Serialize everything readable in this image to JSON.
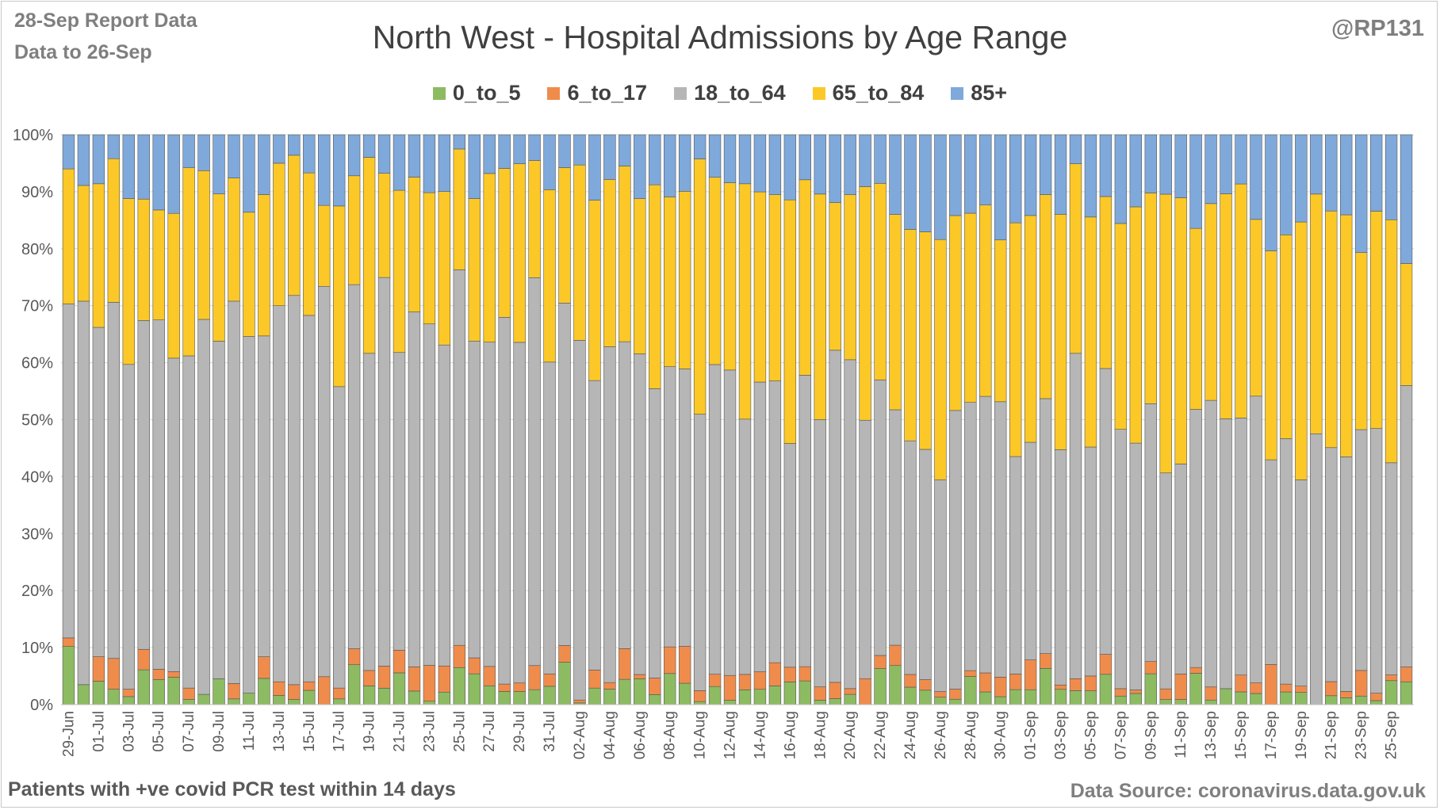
{
  "header": {
    "report_line1": "28-Sep Report Data",
    "report_line2": "Data to 26-Sep",
    "handle": "@RP131"
  },
  "footer": {
    "left_note": "Patients with  +ve covid PCR test within 14 days",
    "source": "Data Source: coronavirus.data.gov.uk"
  },
  "colors": {
    "0_to_5": "#8dbb62",
    "6_to_17": "#ef8c4c",
    "18_to_64": "#b6b6b6",
    "65_to_84": "#fbc828",
    "85+": "#7fa9db",
    "bar_border": "#555555",
    "grid": "#d9d9d9"
  },
  "chart_data": {
    "type": "bar",
    "stacked": true,
    "normalized": true,
    "title": "North West - Hospital Admissions by Age Range",
    "legend_position": "top",
    "grid": true,
    "ylim": [
      0,
      100
    ],
    "y_ticks": [
      "0%",
      "10%",
      "20%",
      "30%",
      "40%",
      "50%",
      "60%",
      "70%",
      "80%",
      "90%",
      "100%"
    ],
    "categories": [
      "29-Jun",
      "30-Jun",
      "01-Jul",
      "02-Jul",
      "03-Jul",
      "04-Jul",
      "05-Jul",
      "06-Jul",
      "07-Jul",
      "08-Jul",
      "09-Jul",
      "10-Jul",
      "11-Jul",
      "12-Jul",
      "13-Jul",
      "14-Jul",
      "15-Jul",
      "16-Jul",
      "17-Jul",
      "18-Jul",
      "19-Jul",
      "20-Jul",
      "21-Jul",
      "22-Jul",
      "23-Jul",
      "24-Jul",
      "25-Jul",
      "26-Jul",
      "27-Jul",
      "28-Jul",
      "29-Jul",
      "30-Jul",
      "31-Jul",
      "01-Aug",
      "02-Aug",
      "03-Aug",
      "04-Aug",
      "05-Aug",
      "06-Aug",
      "07-Aug",
      "08-Aug",
      "09-Aug",
      "10-Aug",
      "11-Aug",
      "12-Aug",
      "13-Aug",
      "14-Aug",
      "15-Aug",
      "16-Aug",
      "17-Aug",
      "18-Aug",
      "19-Aug",
      "20-Aug",
      "21-Aug",
      "22-Aug",
      "23-Aug",
      "24-Aug",
      "25-Aug",
      "26-Aug",
      "27-Aug",
      "28-Aug",
      "29-Aug",
      "30-Aug",
      "31-Aug",
      "01-Sep",
      "02-Sep",
      "03-Sep",
      "04-Sep",
      "05-Sep",
      "06-Sep",
      "07-Sep",
      "08-Sep",
      "09-Sep",
      "10-Sep",
      "11-Sep",
      "12-Sep",
      "13-Sep",
      "14-Sep",
      "15-Sep",
      "16-Sep",
      "17-Sep",
      "18-Sep",
      "19-Sep",
      "20-Sep",
      "21-Sep",
      "22-Sep",
      "23-Sep",
      "24-Sep",
      "25-Sep",
      "26-Sep"
    ],
    "x_tick_labels": [
      "29-Jun",
      "01-Jul",
      "03-Jul",
      "05-Jul",
      "07-Jul",
      "09-Jul",
      "11-Jul",
      "13-Jul",
      "15-Jul",
      "17-Jul",
      "19-Jul",
      "21-Jul",
      "23-Jul",
      "25-Jul",
      "27-Jul",
      "29-Jul",
      "31-Jul",
      "02-Aug",
      "04-Aug",
      "06-Aug",
      "08-Aug",
      "10-Aug",
      "12-Aug",
      "14-Aug",
      "16-Aug",
      "18-Aug",
      "20-Aug",
      "22-Aug",
      "24-Aug",
      "26-Aug",
      "28-Aug",
      "30-Aug",
      "01-Sep",
      "03-Sep",
      "05-Sep",
      "07-Sep",
      "09-Sep",
      "11-Sep",
      "13-Sep",
      "15-Sep",
      "17-Sep",
      "19-Sep",
      "21-Sep",
      "23-Sep",
      "25-Sep"
    ],
    "series": [
      {
        "name": "0_to_5",
        "values": [
          10.2,
          3.5,
          4.1,
          2.7,
          1.4,
          6.1,
          4.4,
          4.8,
          0.9,
          1.8,
          4.4,
          1.0,
          2.0,
          4.6,
          1.6,
          0.9,
          2.5,
          0.0,
          1.0,
          7.0,
          3.4,
          2.9,
          5.6,
          2.3,
          0.6,
          2.2,
          6.5,
          5.4,
          3.3,
          2.3,
          2.3,
          2.6,
          3.4,
          7.1,
          0.3,
          3.1,
          2.6,
          4.6,
          4.8,
          1.7,
          5.6,
          3.7,
          0.5,
          3.1,
          0.8,
          2.6,
          2.7,
          3.3,
          4.0,
          4.0,
          0.8,
          1.1,
          1.8,
          0.0,
          6.3,
          7.3,
          3.3,
          2.6,
          1.3,
          0.9,
          4.8,
          2.2,
          1.5,
          2.5,
          2.6,
          6.1,
          2.8,
          2.2,
          2.7,
          5.0,
          1.5,
          1.9,
          5.3,
          0.9,
          0.9,
          5.5,
          0.8,
          2.8,
          2.2,
          2.1,
          0.0,
          2.1,
          2.1,
          0.0,
          1.7,
          1.2,
          1.5,
          0.7,
          4.2,
          4.0
        ]
      },
      {
        "name": "6_to_17",
        "values": [
          1.5,
          0.0,
          4.3,
          5.4,
          1.3,
          3.6,
          1.8,
          1.0,
          2.0,
          0.0,
          0.0,
          2.7,
          0.0,
          3.8,
          2.4,
          2.6,
          1.5,
          4.9,
          1.9,
          2.8,
          2.8,
          3.9,
          4.0,
          4.1,
          6.3,
          4.6,
          3.9,
          2.8,
          3.4,
          1.3,
          1.5,
          4.2,
          2.3,
          2.8,
          0.5,
          3.4,
          1.1,
          5.6,
          0.8,
          2.8,
          4.8,
          6.4,
          1.8,
          2.1,
          4.6,
          2.7,
          3.1,
          4.1,
          2.6,
          2.4,
          2.4,
          3.0,
          1.0,
          4.4,
          2.3,
          3.8,
          2.4,
          1.9,
          1.0,
          1.7,
          1.0,
          3.3,
          3.7,
          2.6,
          5.2,
          2.5,
          0.8,
          1.9,
          2.9,
          3.3,
          1.3,
          0.6,
          2.1,
          1.9,
          4.5,
          1.0,
          2.3,
          0.0,
          2.9,
          2.0,
          7.6,
          1.3,
          1.1,
          0.0,
          2.7,
          1.1,
          4.5,
          1.3,
          1.0,
          2.6
        ]
      },
      {
        "name": "18_to_64",
        "values": [
          58.6,
          67.3,
          57.8,
          62.5,
          57.0,
          57.7,
          61.3,
          55.0,
          58.3,
          65.8,
          57.6,
          67.1,
          62.6,
          56.3,
          66.0,
          68.3,
          64.3,
          68.5,
          52.9,
          63.9,
          57.6,
          68.6,
          52.5,
          60.3,
          60.1,
          56.5,
          65.9,
          55.6,
          56.9,
          64.3,
          59.9,
          67.6,
          57.9,
          57.4,
          63.0,
          54.4,
          56.4,
          55.9,
          59.7,
          49.1,
          50.5,
          48.1,
          45.7,
          53.1,
          56.6,
          44.8,
          51.2,
          49.8,
          39.5,
          49.2,
          48.2,
          61.2,
          57.6,
          43.8,
          48.2,
          44.0,
          44.2,
          41.5,
          37.4,
          46.9,
          45.8,
          48.0,
          52.1,
          36.3,
          38.0,
          43.0,
          43.2,
          51.5,
          44.8,
          47.2,
          45.6,
          42.1,
          44.3,
          38.5,
          37.0,
          45.2,
          50.4,
          47.5,
          44.4,
          54.2,
          38.8,
          40.7,
          35.7,
          45.2,
          44.8,
          41.0,
          42.3,
          46.4,
          37.2,
          49.4
        ]
      },
      {
        "name": "65_to_84",
        "values": [
          23.7,
          20.3,
          25.2,
          25.2,
          29.1,
          21.3,
          19.3,
          25.4,
          33.0,
          26.1,
          25.1,
          21.6,
          21.8,
          24.8,
          25.0,
          24.6,
          25.0,
          14.2,
          31.7,
          19.1,
          35.6,
          18.4,
          28.6,
          22.9,
          23.1,
          27.0,
          21.2,
          25.0,
          29.6,
          26.1,
          31.4,
          20.4,
          32.0,
          22.7,
          30.7,
          33.9,
          28.1,
          32.0,
          28.9,
          34.6,
          30.6,
          30.8,
          42.2,
          32.1,
          34.7,
          41.3,
          33.6,
          32.9,
          43.0,
          33.0,
          40.7,
          27.2,
          28.9,
          39.6,
          34.4,
          36.5,
          40.0,
          39.2,
          42.4,
          32.8,
          32.3,
          33.2,
          30.6,
          39.0,
          39.6,
          34.4,
          43.2,
          30.0,
          45.0,
          28.4,
          36.2,
          40.3,
          36.2,
          49.7,
          46.9,
          31.7,
          34.6,
          39.6,
          40.4,
          33.4,
          39.6,
          33.8,
          44.6,
          40.0,
          45.3,
          42.3,
          31.1,
          38.1,
          42.6,
          21.4
        ]
      },
      {
        "name": "85+",
        "values": [
          6.0,
          8.9,
          8.6,
          4.2,
          11.2,
          11.3,
          13.2,
          13.8,
          5.8,
          6.3,
          10.1,
          7.6,
          13.6,
          10.5,
          5.0,
          3.6,
          6.7,
          12.4,
          12.5,
          7.2,
          4.1,
          6.8,
          9.8,
          7.2,
          10.2,
          10.0,
          2.5,
          11.2,
          6.8,
          5.9,
          5.1,
          4.5,
          10.2,
          5.5,
          5.3,
          12.3,
          7.5,
          5.7,
          11.9,
          8.5,
          11.2,
          9.8,
          4.0,
          7.3,
          8.9,
          8.6,
          10.1,
          10.6,
          11.5,
          7.6,
          10.7,
          12.5,
          10.5,
          8.8,
          8.5,
          14.9,
          17.9,
          17.5,
          18.5,
          13.6,
          13.4,
          12.2,
          19.9,
          14.7,
          14.1,
          10.1,
          14.6,
          4.6,
          16.1,
          10.2,
          15.6,
          12.3,
          10.0,
          10.6,
          11.1,
          16.4,
          12.1,
          10.4,
          8.5,
          16.0,
          22.0,
          16.6,
          15.1,
          9.9,
          14.6,
          14.0,
          20.7,
          13.4,
          14.9,
          22.6
        ]
      }
    ]
  }
}
